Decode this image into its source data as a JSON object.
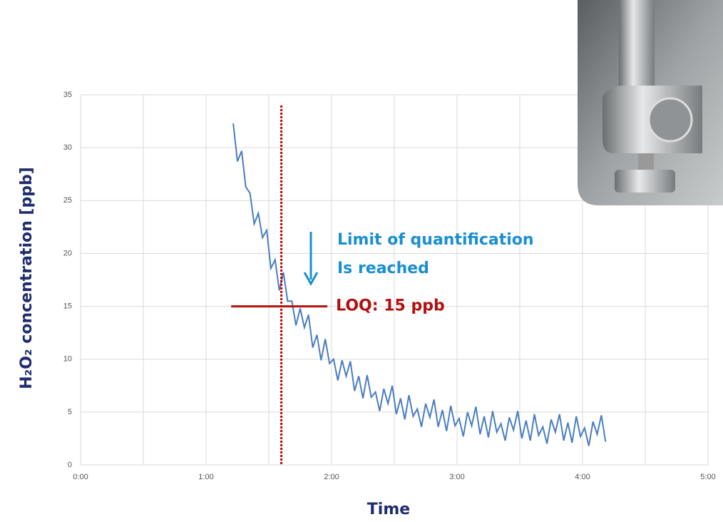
{
  "chart_data": {
    "type": "line",
    "ylabel": "H₂O₂ concentration [ppb]",
    "xlabel": "Time",
    "x": [
      73,
      75,
      77,
      79,
      81,
      83,
      85,
      87,
      89,
      91,
      93,
      95,
      97,
      99,
      101,
      103,
      105,
      107,
      109,
      111,
      113,
      115,
      117,
      119,
      121,
      123,
      125,
      127,
      129,
      131,
      133,
      135,
      137,
      139,
      141,
      143,
      145,
      147,
      149,
      151,
      153,
      155,
      157,
      159,
      161,
      163,
      165,
      167,
      169,
      171,
      173,
      175,
      177,
      179,
      181,
      183,
      185,
      187,
      189,
      191,
      193,
      195,
      197,
      199,
      201,
      203,
      205,
      207,
      209,
      211,
      213,
      215,
      217,
      219,
      221,
      223,
      225,
      227,
      229,
      231,
      233,
      235,
      237,
      239,
      241,
      243,
      245,
      247,
      249,
      251
    ],
    "series": [
      {
        "color": "#4a7ebf",
        "values": [
          32.3,
          28.7,
          29.7,
          26.3,
          25.7,
          22.8,
          23.8,
          21.5,
          22.2,
          18.6,
          19.4,
          16.5,
          18.2,
          15.5,
          15.5,
          13.2,
          14.8,
          13.0,
          14.2,
          11.1,
          12.3,
          9.9,
          11.9,
          9.6,
          10.0,
          8.0,
          9.9,
          8.4,
          9.8,
          7.0,
          8.4,
          6.3,
          8.5,
          6.4,
          6.9,
          5.1,
          7.2,
          5.8,
          7.5,
          4.8,
          6.3,
          4.3,
          6.6,
          4.6,
          5.3,
          3.6,
          5.8,
          4.5,
          6.2,
          3.6,
          5.2,
          3.2,
          5.6,
          3.7,
          4.4,
          2.7,
          5.0,
          3.7,
          5.5,
          2.9,
          4.6,
          2.6,
          5.1,
          3.1,
          3.9,
          2.3,
          4.5,
          3.3,
          5.1,
          2.5,
          4.2,
          2.3,
          4.8,
          2.8,
          3.6,
          2.0,
          4.3,
          3.1,
          4.8,
          2.3,
          4.0,
          2.1,
          4.6,
          2.7,
          3.5,
          1.8,
          4.1,
          2.9,
          4.7,
          2.2
        ]
      }
    ],
    "xlim": [
      0,
      300
    ],
    "xticks": [
      {
        "value": 0,
        "label": "0:00"
      },
      {
        "value": 60,
        "label": "1:00"
      },
      {
        "value": 120,
        "label": "2:00"
      },
      {
        "value": 180,
        "label": "3:00"
      },
      {
        "value": 240,
        "label": "4:00"
      },
      {
        "value": 300,
        "label": "5:00"
      }
    ],
    "xminorticks": [
      30,
      90,
      150,
      210,
      270
    ],
    "ylim": [
      0,
      35
    ],
    "yticks": [
      0,
      5,
      10,
      15,
      20,
      25,
      30,
      35
    ],
    "grid": true,
    "reached_line": {
      "x": 96,
      "color": "#c00000"
    },
    "loq_line": {
      "y": 15,
      "x": [
        72,
        118
      ],
      "label": "LOQ: 15 ppb",
      "color": "#b01010"
    },
    "annotation": {
      "lines": [
        "Limit of quantification",
        "Is reached"
      ],
      "color": "#1a8fd0"
    }
  }
}
